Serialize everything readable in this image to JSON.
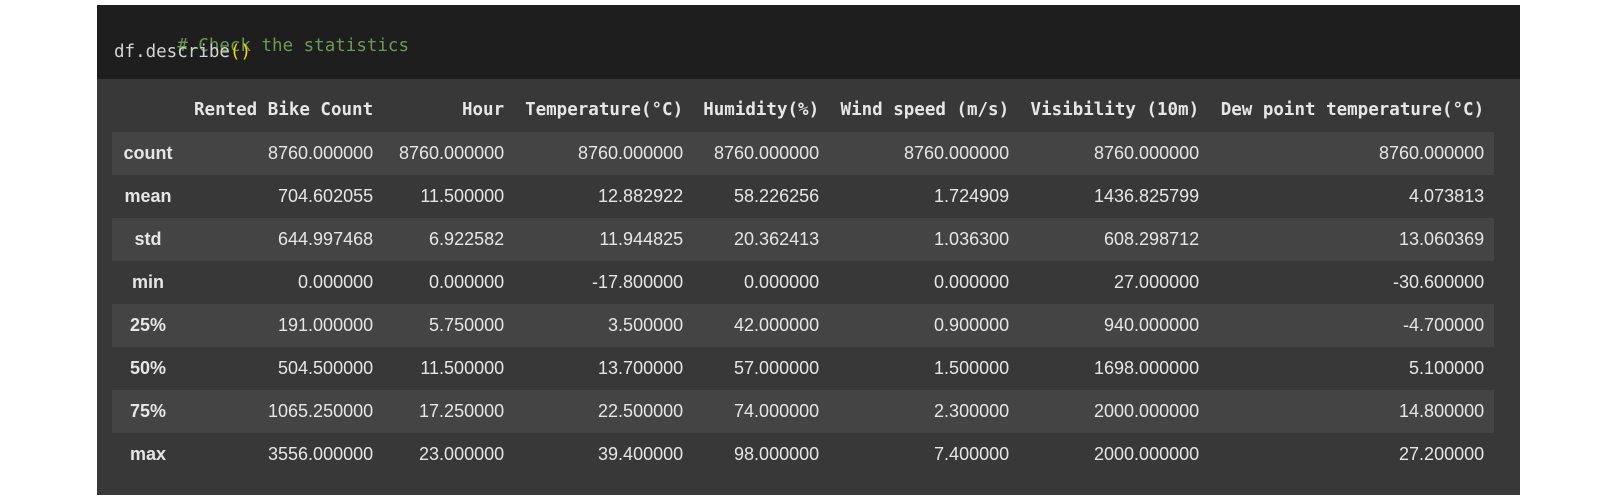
{
  "code": {
    "comment": "# Check the statistics",
    "call_name": "df.describe",
    "call_parens": "()"
  },
  "table": {
    "columns": [
      "Rented Bike Count",
      "Hour",
      "Temperature(°C)",
      "Humidity(%)",
      "Wind speed (m/s)",
      "Visibility (10m)",
      "Dew point temperature(°C)"
    ],
    "rows": [
      {
        "label": "count",
        "values": [
          "8760.000000",
          "8760.000000",
          "8760.000000",
          "8760.000000",
          "8760.000000",
          "8760.000000",
          "8760.000000"
        ]
      },
      {
        "label": "mean",
        "values": [
          "704.602055",
          "11.500000",
          "12.882922",
          "58.226256",
          "1.724909",
          "1436.825799",
          "4.073813"
        ]
      },
      {
        "label": "std",
        "values": [
          "644.997468",
          "6.922582",
          "11.944825",
          "20.362413",
          "1.036300",
          "608.298712",
          "13.060369"
        ]
      },
      {
        "label": "min",
        "values": [
          "0.000000",
          "0.000000",
          "-17.800000",
          "0.000000",
          "0.000000",
          "27.000000",
          "-30.600000"
        ]
      },
      {
        "label": "25%",
        "values": [
          "191.000000",
          "5.750000",
          "3.500000",
          "42.000000",
          "0.900000",
          "940.000000",
          "-4.700000"
        ]
      },
      {
        "label": "50%",
        "values": [
          "504.500000",
          "11.500000",
          "13.700000",
          "57.000000",
          "1.500000",
          "1698.000000",
          "5.100000"
        ]
      },
      {
        "label": "75%",
        "values": [
          "1065.250000",
          "17.250000",
          "22.500000",
          "74.000000",
          "2.300000",
          "2000.000000",
          "14.800000"
        ]
      },
      {
        "label": "max",
        "values": [
          "3556.000000",
          "23.000000",
          "39.400000",
          "98.000000",
          "7.400000",
          "2000.000000",
          "27.200000"
        ]
      }
    ]
  }
}
